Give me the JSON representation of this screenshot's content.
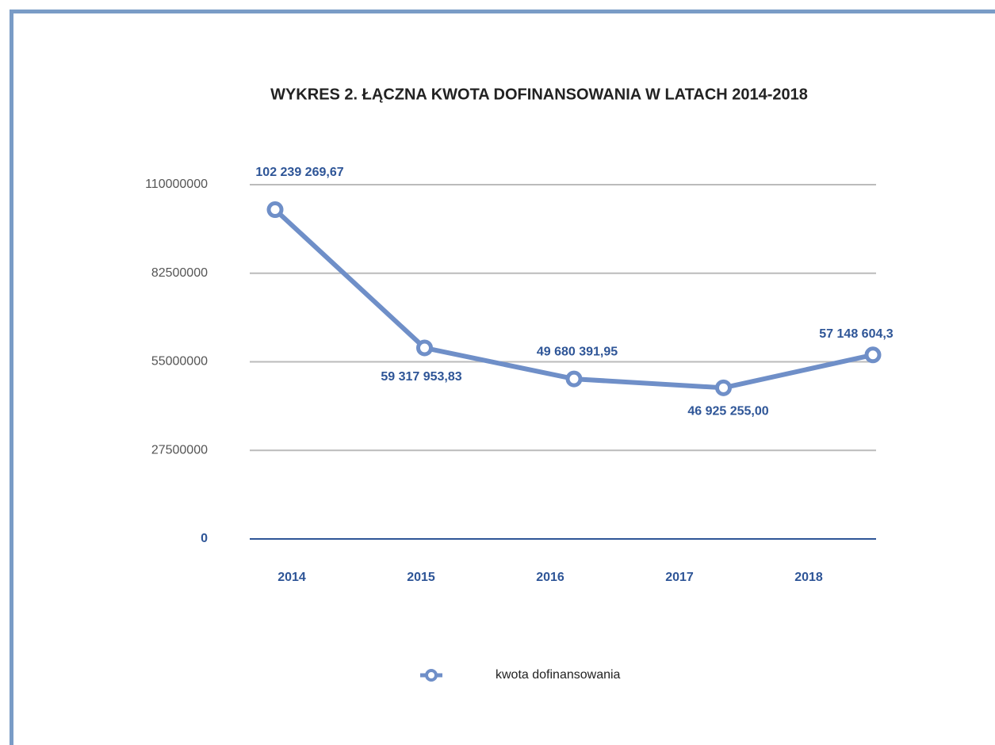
{
  "chart_data": {
    "type": "line",
    "title": "WYKRES 2. ŁĄCZNA KWOTA DOFINANSOWANIA W LATACH 2014-2018",
    "categories": [
      "2014",
      "2015",
      "2016",
      "2017",
      "2018"
    ],
    "series": [
      {
        "name": "kwota dofinansowania",
        "color": "#6f8fc8",
        "values": [
          102239269.67,
          59317953.83,
          49680391.95,
          46925255.0,
          57148604.3
        ],
        "value_labels": [
          "102 239 269,67",
          "59 317 953,83",
          "49 680 391,95",
          "46 925 255,00",
          "57 148 604,3"
        ]
      }
    ],
    "ylim": [
      0,
      110000000
    ],
    "yticks": [
      0,
      27500000,
      55000000,
      82500000,
      110000000
    ],
    "grid": true
  }
}
